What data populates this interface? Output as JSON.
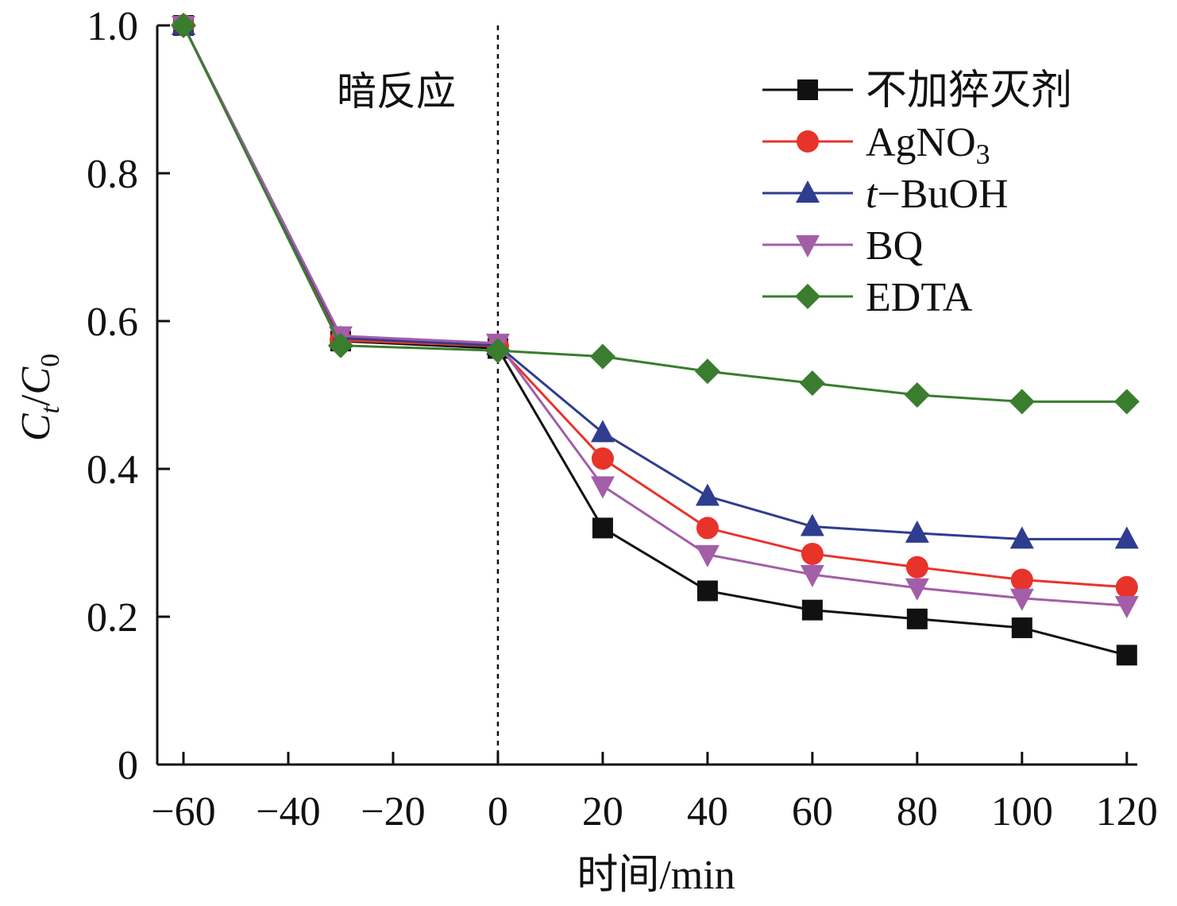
{
  "chart_data": {
    "type": "line",
    "title": "",
    "xlabel": "时间/min",
    "ylabel": {
      "main": "C",
      "sub1": "t",
      "sep": "/",
      "main2": "C",
      "sub2": "0"
    },
    "xlim": [
      -65,
      122
    ],
    "ylim": [
      0,
      1.0
    ],
    "xticks": [
      -60,
      -40,
      -20,
      0,
      20,
      40,
      60,
      80,
      100,
      120
    ],
    "xtick_labels": [
      "−60",
      "−40",
      "−20",
      "0",
      "20",
      "40",
      "60",
      "80",
      "100",
      "120"
    ],
    "yticks": [
      0,
      0.2,
      0.4,
      0.6,
      0.8,
      1.0
    ],
    "ytick_labels": [
      "0",
      "0.2",
      "0.4",
      "0.6",
      "0.8",
      "1.0"
    ],
    "grid": false,
    "legend_position": "top-right",
    "annotations": [
      {
        "text": "暗反应",
        "at_x": -30,
        "at_y": 0.925
      }
    ],
    "reference_lines": [
      {
        "x": 0,
        "style": "dashed"
      }
    ],
    "x": [
      -60,
      -30,
      0,
      20,
      40,
      60,
      80,
      100,
      120
    ],
    "series": [
      {
        "name": "不加猝灭剂",
        "marker": "square",
        "color": "#111111",
        "values": [
          1.0,
          0.573,
          0.563,
          0.32,
          0.235,
          0.209,
          0.197,
          0.185,
          0.148
        ]
      },
      {
        "name": "AgNO",
        "name_sub": "3",
        "marker": "circle",
        "color": "#e8332a",
        "values": [
          1.0,
          0.574,
          0.566,
          0.414,
          0.32,
          0.285,
          0.267,
          0.25,
          0.24
        ]
      },
      {
        "name": "−BuOH",
        "name_italic_prefix": "t",
        "marker": "triangle-up",
        "color": "#2f3d8f",
        "values": [
          1.0,
          0.577,
          0.567,
          0.449,
          0.363,
          0.322,
          0.313,
          0.305,
          0.305
        ]
      },
      {
        "name": "BQ",
        "marker": "triangle-down",
        "color": "#a35ea8",
        "values": [
          1.0,
          0.58,
          0.57,
          0.377,
          0.284,
          0.257,
          0.239,
          0.225,
          0.215
        ]
      },
      {
        "name": "EDTA",
        "marker": "diamond",
        "color": "#3a7d2f",
        "values": [
          1.0,
          0.567,
          0.56,
          0.552,
          0.532,
          0.516,
          0.5,
          0.491,
          0.491
        ]
      }
    ]
  }
}
